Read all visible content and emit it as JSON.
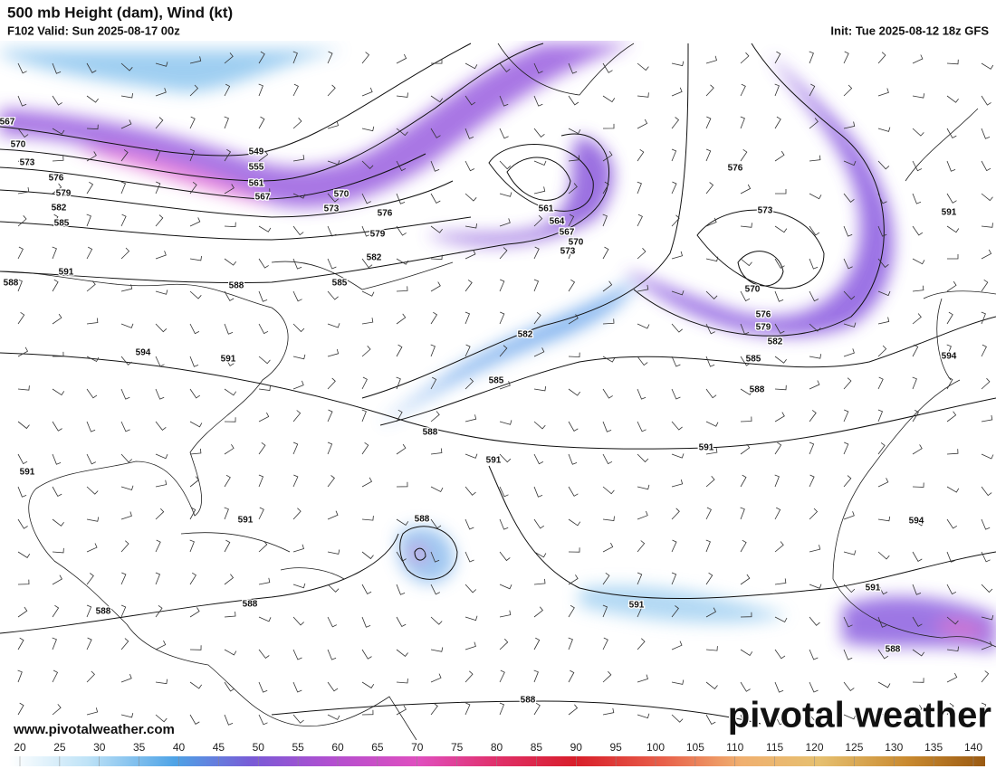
{
  "header": {
    "title": "500 mb Height (dam), Wind (kt)",
    "valid": "F102 Valid: Sun 2025-08-17 00z",
    "init": "Init: Tue 2025-08-12 18z GFS"
  },
  "contour_labels": [
    "567",
    "570",
    "573",
    "576",
    "579",
    "582",
    "585",
    "588",
    "591",
    "549",
    "555",
    "561",
    "567",
    "570",
    "573",
    "576",
    "579",
    "582",
    "585",
    "588",
    "594",
    "591",
    "561",
    "564",
    "567",
    "570",
    "573",
    "576",
    "573",
    "570",
    "576",
    "579",
    "582",
    "585",
    "588",
    "582",
    "585",
    "588",
    "591",
    "591",
    "591",
    "594",
    "591",
    "591",
    "588",
    "588",
    "588",
    "591",
    "594",
    "591",
    "588",
    "588"
  ],
  "footer": {
    "website": "www.pivotalweather.com",
    "brand": "pivotal weather"
  },
  "colorbar": {
    "ticks": [
      20,
      25,
      30,
      35,
      40,
      45,
      50,
      55,
      60,
      65,
      70,
      75,
      80,
      85,
      90,
      95,
      100,
      105,
      110,
      115,
      120,
      125,
      130,
      135,
      140
    ]
  }
}
